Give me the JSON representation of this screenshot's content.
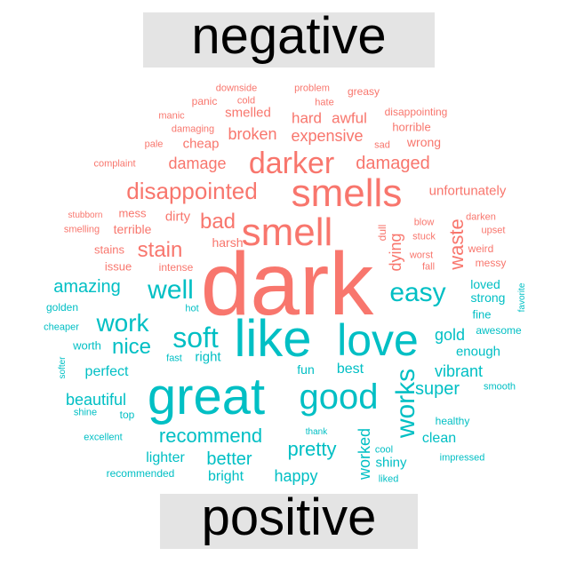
{
  "labels": {
    "negative": "negative",
    "positive": "positive"
  },
  "colors": {
    "negative": "#f8766d",
    "positive": "#00bfc4",
    "label_bg": "#e4e4e4",
    "label_text": "#000000"
  },
  "words": [
    {
      "text": "dark",
      "group": "negative"
    },
    {
      "text": "smells",
      "group": "negative"
    },
    {
      "text": "smell",
      "group": "negative"
    },
    {
      "text": "darker",
      "group": "negative"
    },
    {
      "text": "disappointed",
      "group": "negative"
    },
    {
      "text": "bad",
      "group": "negative"
    },
    {
      "text": "stain",
      "group": "negative"
    },
    {
      "text": "damaged",
      "group": "negative"
    },
    {
      "text": "damage",
      "group": "negative"
    },
    {
      "text": "waste",
      "group": "negative"
    },
    {
      "text": "dying",
      "group": "negative"
    },
    {
      "text": "expensive",
      "group": "negative"
    },
    {
      "text": "broken",
      "group": "negative"
    },
    {
      "text": "hard",
      "group": "negative"
    },
    {
      "text": "awful",
      "group": "negative"
    },
    {
      "text": "smelled",
      "group": "negative"
    },
    {
      "text": "cheap",
      "group": "negative"
    },
    {
      "text": "dirty",
      "group": "negative"
    },
    {
      "text": "terrible",
      "group": "negative"
    },
    {
      "text": "mess",
      "group": "negative"
    },
    {
      "text": "harsh",
      "group": "negative"
    },
    {
      "text": "stains",
      "group": "negative"
    },
    {
      "text": "issue",
      "group": "negative"
    },
    {
      "text": "intense",
      "group": "negative"
    },
    {
      "text": "unfortunately",
      "group": "negative"
    },
    {
      "text": "wrong",
      "group": "negative"
    },
    {
      "text": "horrible",
      "group": "negative"
    },
    {
      "text": "disappointing",
      "group": "negative"
    },
    {
      "text": "downside",
      "group": "negative"
    },
    {
      "text": "problem",
      "group": "negative"
    },
    {
      "text": "greasy",
      "group": "negative"
    },
    {
      "text": "panic",
      "group": "negative"
    },
    {
      "text": "cold",
      "group": "negative"
    },
    {
      "text": "hate",
      "group": "negative"
    },
    {
      "text": "manic",
      "group": "negative"
    },
    {
      "text": "damaging",
      "group": "negative"
    },
    {
      "text": "pale",
      "group": "negative"
    },
    {
      "text": "sad",
      "group": "negative"
    },
    {
      "text": "complaint",
      "group": "negative"
    },
    {
      "text": "stubborn",
      "group": "negative"
    },
    {
      "text": "smelling",
      "group": "negative"
    },
    {
      "text": "blow",
      "group": "negative"
    },
    {
      "text": "stuck",
      "group": "negative"
    },
    {
      "text": "dull",
      "group": "negative"
    },
    {
      "text": "darken",
      "group": "negative"
    },
    {
      "text": "upset",
      "group": "negative"
    },
    {
      "text": "weird",
      "group": "negative"
    },
    {
      "text": "messy",
      "group": "negative"
    },
    {
      "text": "worst",
      "group": "negative"
    },
    {
      "text": "fall",
      "group": "negative"
    },
    {
      "text": "like",
      "group": "positive"
    },
    {
      "text": "love",
      "group": "positive"
    },
    {
      "text": "great",
      "group": "positive"
    },
    {
      "text": "good",
      "group": "positive"
    },
    {
      "text": "soft",
      "group": "positive"
    },
    {
      "text": "well",
      "group": "positive"
    },
    {
      "text": "easy",
      "group": "positive"
    },
    {
      "text": "work",
      "group": "positive"
    },
    {
      "text": "nice",
      "group": "positive"
    },
    {
      "text": "works",
      "group": "positive"
    },
    {
      "text": "amazing",
      "group": "positive"
    },
    {
      "text": "recommend",
      "group": "positive"
    },
    {
      "text": "pretty",
      "group": "positive"
    },
    {
      "text": "better",
      "group": "positive"
    },
    {
      "text": "super",
      "group": "positive"
    },
    {
      "text": "vibrant",
      "group": "positive"
    },
    {
      "text": "gold",
      "group": "positive"
    },
    {
      "text": "worked",
      "group": "positive"
    },
    {
      "text": "beautiful",
      "group": "positive"
    },
    {
      "text": "perfect",
      "group": "positive"
    },
    {
      "text": "right",
      "group": "positive"
    },
    {
      "text": "best",
      "group": "positive"
    },
    {
      "text": "fun",
      "group": "positive"
    },
    {
      "text": "happy",
      "group": "positive"
    },
    {
      "text": "bright",
      "group": "positive"
    },
    {
      "text": "lighter",
      "group": "positive"
    },
    {
      "text": "shiny",
      "group": "positive"
    },
    {
      "text": "clean",
      "group": "positive"
    },
    {
      "text": "enough",
      "group": "positive"
    },
    {
      "text": "fine",
      "group": "positive"
    },
    {
      "text": "strong",
      "group": "positive"
    },
    {
      "text": "loved",
      "group": "positive"
    },
    {
      "text": "awesome",
      "group": "positive"
    },
    {
      "text": "smooth",
      "group": "positive"
    },
    {
      "text": "healthy",
      "group": "positive"
    },
    {
      "text": "impressed",
      "group": "positive"
    },
    {
      "text": "liked",
      "group": "positive"
    },
    {
      "text": "cool",
      "group": "positive"
    },
    {
      "text": "thank",
      "group": "positive"
    },
    {
      "text": "excellent",
      "group": "positive"
    },
    {
      "text": "recommended",
      "group": "positive"
    },
    {
      "text": "top",
      "group": "positive"
    },
    {
      "text": "shine",
      "group": "positive"
    },
    {
      "text": "softer",
      "group": "positive"
    },
    {
      "text": "worth",
      "group": "positive"
    },
    {
      "text": "cheaper",
      "group": "positive"
    },
    {
      "text": "golden",
      "group": "positive"
    },
    {
      "text": "hot",
      "group": "positive"
    },
    {
      "text": "fast",
      "group": "positive"
    },
    {
      "text": "favorite",
      "group": "positive"
    }
  ]
}
